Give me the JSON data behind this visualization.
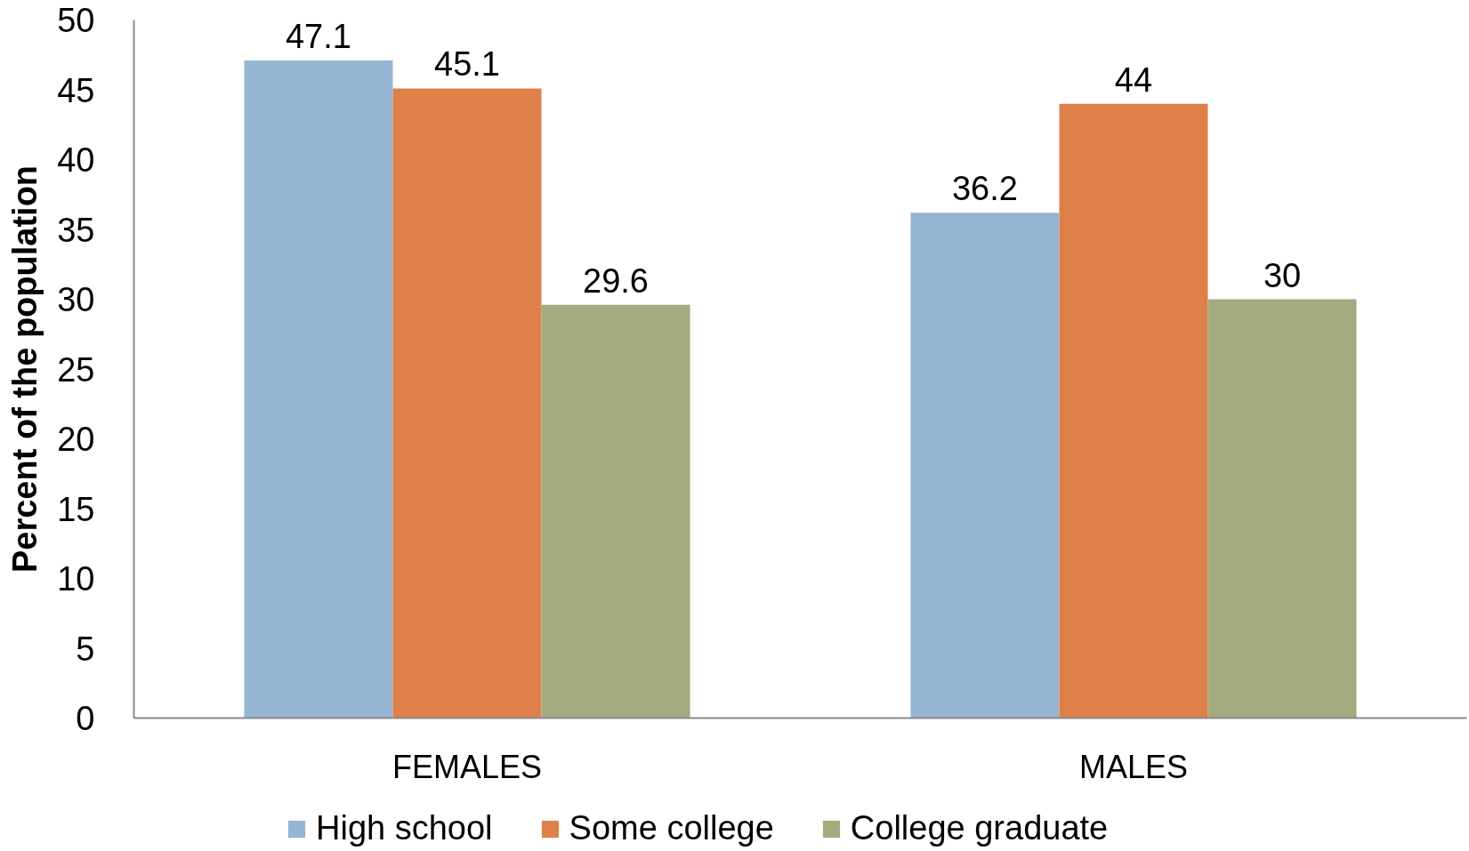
{
  "chart_data": {
    "type": "bar",
    "categories": [
      "FEMALES",
      "MALES"
    ],
    "ylabel": "Percent of the population",
    "ylim": [
      0,
      50
    ],
    "yticks": [
      0,
      5,
      10,
      15,
      20,
      25,
      30,
      35,
      40,
      45,
      50
    ],
    "series": [
      {
        "name": "High school",
        "color": "#95b5d3",
        "values": [
          47.1,
          36.2
        ]
      },
      {
        "name": "Some college",
        "color": "#dd804a",
        "values": [
          45.1,
          44
        ]
      },
      {
        "name": "College graduate",
        "color": "#a4aa7e",
        "values": [
          29.6,
          30
        ]
      }
    ],
    "data_labels": true,
    "legend": "bottom",
    "grid": false
  }
}
